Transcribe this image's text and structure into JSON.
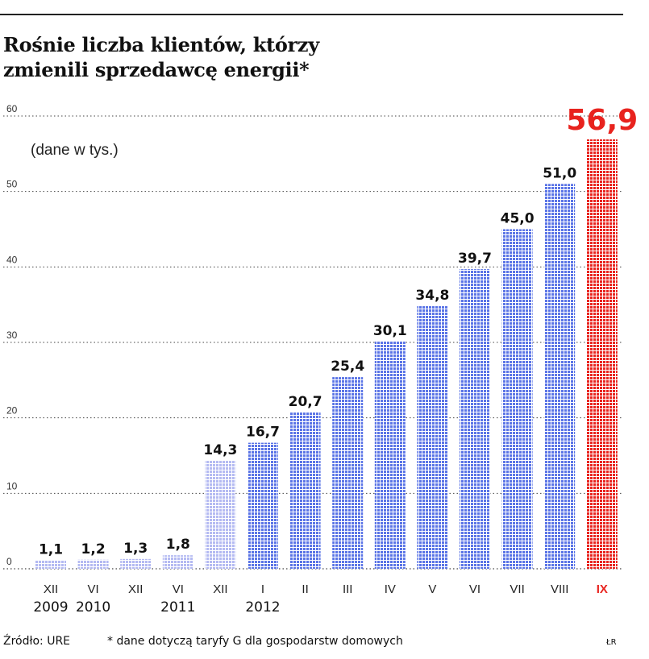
{
  "title_line1": "Rośnie liczba klientów, którzy",
  "title_line2": "zmienili sprzedawcę energii*",
  "units_note": "(dane w tys.)",
  "source": "Źródło: URE",
  "footnote": "* dane dotyczą taryfy G dla gospodarstw domowych",
  "credit": "ŁR",
  "colors": {
    "bar_light": "#b4baf2",
    "bar": "#5a74e6",
    "bar_highlight": "#e8231e",
    "grid": "#444444"
  },
  "chart_data": {
    "type": "bar",
    "title": "Rośnie liczba klientów, którzy zmienili sprzedawcę energii*",
    "ylabel": "(dane w tys.)",
    "ylim": [
      0,
      60
    ],
    "yticks": [
      0,
      10,
      20,
      30,
      40,
      50,
      60
    ],
    "ytick_labels": [
      "0",
      "10",
      "20",
      "30",
      "40",
      "50",
      "60"
    ],
    "grid": true,
    "categories": [
      "XII",
      "VI",
      "XII",
      "VI",
      "XII",
      "I",
      "II",
      "III",
      "IV",
      "V",
      "VI",
      "VII",
      "VIII",
      "IX"
    ],
    "values": [
      1.1,
      1.2,
      1.3,
      1.8,
      14.3,
      16.7,
      20.7,
      25.4,
      30.1,
      34.8,
      39.7,
      45.0,
      51.0,
      56.9
    ],
    "value_labels": [
      "1,1",
      "1,2",
      "1,3",
      "1,8",
      "14,3",
      "16,7",
      "20,7",
      "25,4",
      "30,1",
      "34,8",
      "39,7",
      "45,0",
      "51,0",
      "56,9"
    ],
    "year_labels": [
      {
        "category_index": 0,
        "label": "2009"
      },
      {
        "category_index": 1,
        "label": "2010"
      },
      {
        "category_index": 3,
        "label": "2011"
      },
      {
        "category_index": 5,
        "label": "2012"
      }
    ],
    "style": [
      "light",
      "light",
      "light",
      "light",
      "light",
      "normal",
      "normal",
      "normal",
      "normal",
      "normal",
      "normal",
      "normal",
      "normal",
      "highlight"
    ]
  }
}
